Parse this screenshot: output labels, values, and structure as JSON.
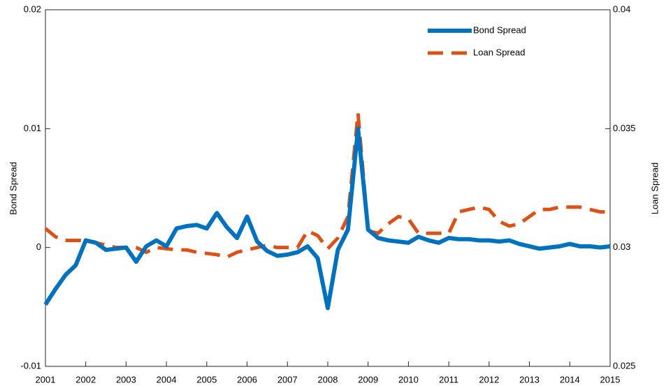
{
  "chart_data": {
    "type": "line",
    "ylabel": "Bond Spread",
    "y2label": "Loan Spread",
    "x": [
      2001,
      2001.25,
      2001.5,
      2001.75,
      2002,
      2002.25,
      2002.5,
      2002.75,
      2003,
      2003.25,
      2003.5,
      2003.75,
      2004,
      2004.25,
      2004.5,
      2004.75,
      2005,
      2005.25,
      2005.5,
      2005.75,
      2006,
      2006.25,
      2006.5,
      2006.75,
      2007,
      2007.25,
      2007.5,
      2007.75,
      2008,
      2008.25,
      2008.5,
      2008.75,
      2009,
      2009.25,
      2009.5,
      2009.75,
      2010,
      2010.25,
      2010.5,
      2010.75,
      2011,
      2011.25,
      2011.5,
      2011.75,
      2012,
      2012.25,
      2012.5,
      2012.75,
      2013,
      2013.25,
      2013.5,
      2013.75,
      2014,
      2014.25,
      2014.5,
      2014.75,
      2015
    ],
    "xlim": [
      2001,
      2015
    ],
    "xticks": [
      2001,
      2002,
      2003,
      2004,
      2005,
      2006,
      2007,
      2008,
      2009,
      2010,
      2011,
      2012,
      2013,
      2014,
      2015
    ],
    "ylim": [
      -0.01,
      0.02
    ],
    "yticks": [
      -0.01,
      0,
      0.01,
      0.02
    ],
    "y2lim": [
      0.025,
      0.04
    ],
    "y2ticks": [
      0.025,
      0.03,
      0.035,
      0.04
    ],
    "legend": "upper right",
    "series": [
      {
        "name": "Bond Spread",
        "color": "#0072bd",
        "style": "solid",
        "values": [
          -0.0048,
          -0.0035,
          -0.0023,
          -0.0015,
          0.0006,
          0.0004,
          -0.0002,
          -0.0001,
          0,
          -0.0012,
          0.0001,
          0.0006,
          0.0001,
          0.0016,
          0.0018,
          0.0019,
          0.0016,
          0.0029,
          0.0017,
          0.0008,
          0.0026,
          0.0005,
          -0.0003,
          -0.0007,
          -0.0006,
          -0.0004,
          0.0001,
          -0.0009,
          -0.0051,
          -0.0002,
          0.0015,
          0.01,
          0.0015,
          0.0008,
          0.0006,
          0.0005,
          0.0004,
          0.0009,
          0.0006,
          0.0004,
          0.0008,
          0.0007,
          0.0007,
          0.0006,
          0.0006,
          0.0005,
          0.0006,
          0.0003,
          0.0001,
          -0.0001,
          0,
          0.0001,
          0.0003,
          0.0001,
          0.0001,
          0,
          0.0001
        ]
      },
      {
        "name": "Loan Spread",
        "color": "#d95319",
        "style": "dashed",
        "axis": "y2",
        "values": [
          0.0308,
          0.03045,
          0.0303,
          0.0303,
          0.0303,
          0.0302,
          0.0301,
          0.03,
          0.03,
          0.03,
          0.0298,
          0.03,
          0.02995,
          0.0299,
          0.0299,
          0.0298,
          0.02975,
          0.0297,
          0.0296,
          0.0298,
          0.0299,
          0.03,
          0.0301,
          0.03,
          0.03,
          0.03,
          0.0307,
          0.0305,
          0.02995,
          0.0304,
          0.0313,
          0.03565,
          0.0307,
          0.0306,
          0.031,
          0.0313,
          0.0312,
          0.0306,
          0.0306,
          0.0306,
          0.0306,
          0.0315,
          0.0316,
          0.0317,
          0.0316,
          0.0311,
          0.0309,
          0.031,
          0.0313,
          0.0316,
          0.0316,
          0.0317,
          0.0317,
          0.0317,
          0.0316,
          0.0315,
          0.0315
        ]
      }
    ]
  }
}
